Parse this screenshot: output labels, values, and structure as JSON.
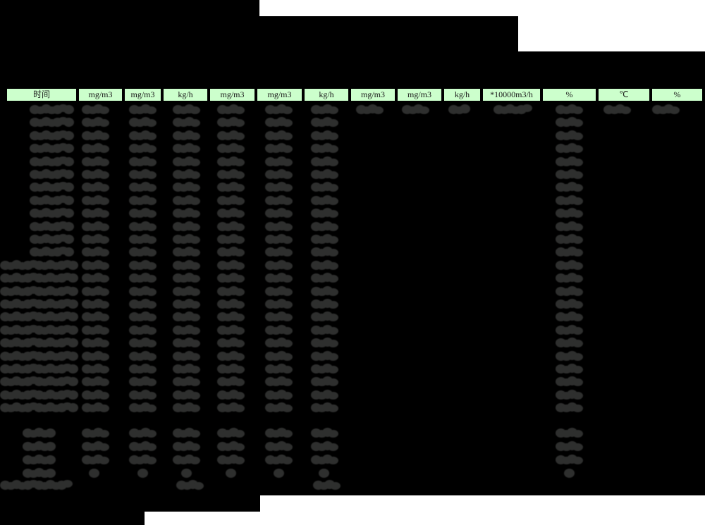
{
  "report": {
    "unit_header": [
      "时间",
      "mg/m3",
      "mg/m3",
      "kg/h",
      "mg/m3",
      "mg/m3",
      "kg/h",
      "mg/m3",
      "mg/m3",
      "kg/h",
      "*10000m3/h",
      "%",
      "℃",
      "%"
    ],
    "colors": {
      "header_bg": "#ccffcc",
      "header_border": "#000000",
      "page_bg": "#000000",
      "page_white": "#ffffff",
      "blob": "#2e2f2e"
    },
    "values_legible": false,
    "body_rows": [
      {
        "type": "data",
        "span": "all",
        "wide_label": false
      },
      {
        "type": "data",
        "span": "std",
        "wide_label": false
      },
      {
        "type": "data",
        "span": "std",
        "wide_label": false
      },
      {
        "type": "data",
        "span": "std",
        "wide_label": false
      },
      {
        "type": "data",
        "span": "std",
        "wide_label": false
      },
      {
        "type": "data",
        "span": "std",
        "wide_label": false
      },
      {
        "type": "data",
        "span": "std",
        "wide_label": false
      },
      {
        "type": "data",
        "span": "std",
        "wide_label": false
      },
      {
        "type": "data",
        "span": "std",
        "wide_label": false
      },
      {
        "type": "data",
        "span": "std",
        "wide_label": false
      },
      {
        "type": "data",
        "span": "std",
        "wide_label": false
      },
      {
        "type": "data",
        "span": "std",
        "wide_label": false
      },
      {
        "type": "data",
        "span": "std",
        "wide_label": true
      },
      {
        "type": "data",
        "span": "std",
        "wide_label": true
      },
      {
        "type": "data",
        "span": "std",
        "wide_label": true
      },
      {
        "type": "data",
        "span": "std",
        "wide_label": true
      },
      {
        "type": "data",
        "span": "std",
        "wide_label": true
      },
      {
        "type": "data",
        "span": "std",
        "wide_label": true
      },
      {
        "type": "data",
        "span": "std",
        "wide_label": true
      },
      {
        "type": "data",
        "span": "std",
        "wide_label": true
      },
      {
        "type": "data",
        "span": "std",
        "wide_label": true
      },
      {
        "type": "data",
        "span": "std",
        "wide_label": true
      },
      {
        "type": "data",
        "span": "std",
        "wide_label": true
      },
      {
        "type": "data",
        "span": "std",
        "wide_label": true
      },
      {
        "type": "spacer"
      },
      {
        "type": "summary",
        "small": false
      },
      {
        "type": "summary",
        "small": false
      },
      {
        "type": "summary",
        "small": false
      },
      {
        "type": "summary",
        "small": true
      },
      {
        "type": "total"
      }
    ]
  }
}
